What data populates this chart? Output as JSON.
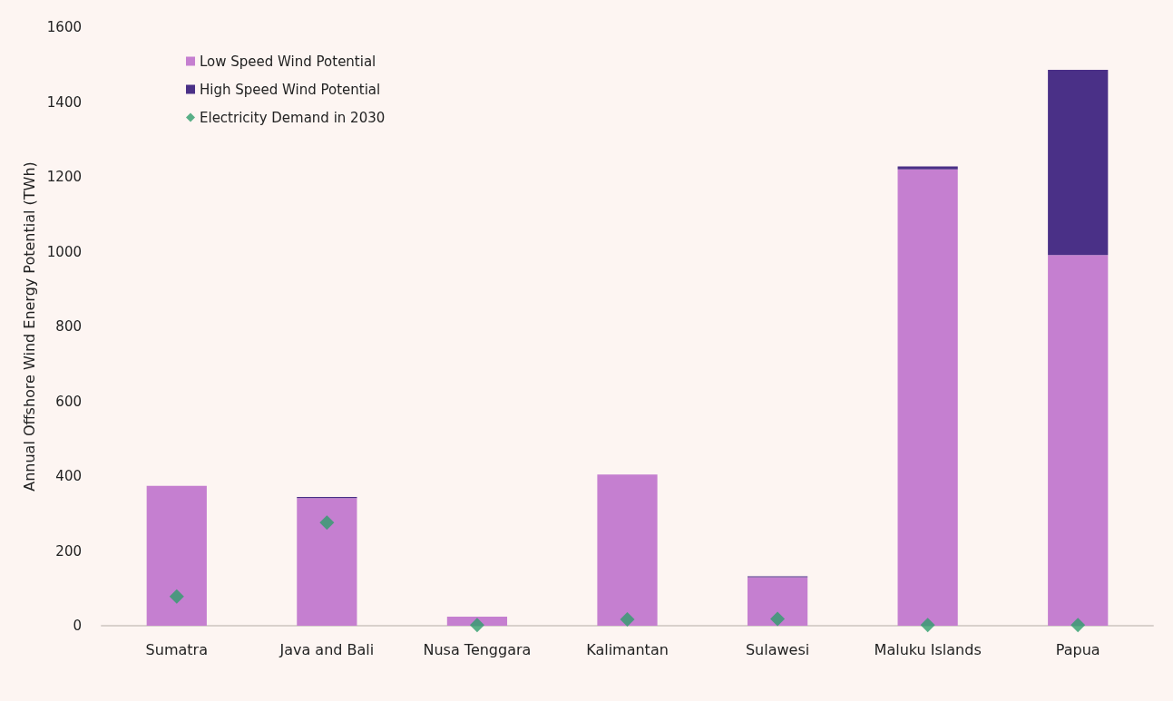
{
  "chart_data": {
    "type": "bar",
    "stacked": true,
    "ylabel": "Annual Offshore Wind Energy Potential (TWh)",
    "categories": [
      "Sumatra",
      "Java and Bali",
      "Nusa Tenggara",
      "Kalimantan",
      "Sulawesi",
      "Maluku Islands",
      "Papua"
    ],
    "series": [
      {
        "name": "Low Speed Wind Potential",
        "color": "#c57fd0",
        "values": [
          374,
          341,
          24,
          404,
          130,
          1220,
          991
        ]
      },
      {
        "name": "High Speed Wind Potential",
        "color": "#4a3087",
        "values": [
          null,
          3,
          null,
          null,
          2,
          8,
          495
        ]
      },
      {
        "name": "Electricity Demand in 2030",
        "type": "scatter",
        "marker": "diamond",
        "color": "#2e9e6b",
        "x": [
          "Sumatra",
          "Java and Bali",
          "Nusa Tenggara",
          "Kalimantan",
          "Sulawesi",
          "Maluku Islands",
          "Papua"
        ],
        "values": [
          78,
          276,
          2,
          17,
          18,
          2,
          2
        ]
      }
    ],
    "ylim": [
      0,
      1600
    ],
    "yticks": [
      0,
      200,
      400,
      600,
      800,
      1000,
      1200,
      1400,
      1600
    ],
    "grid": false,
    "legend": "top left"
  }
}
